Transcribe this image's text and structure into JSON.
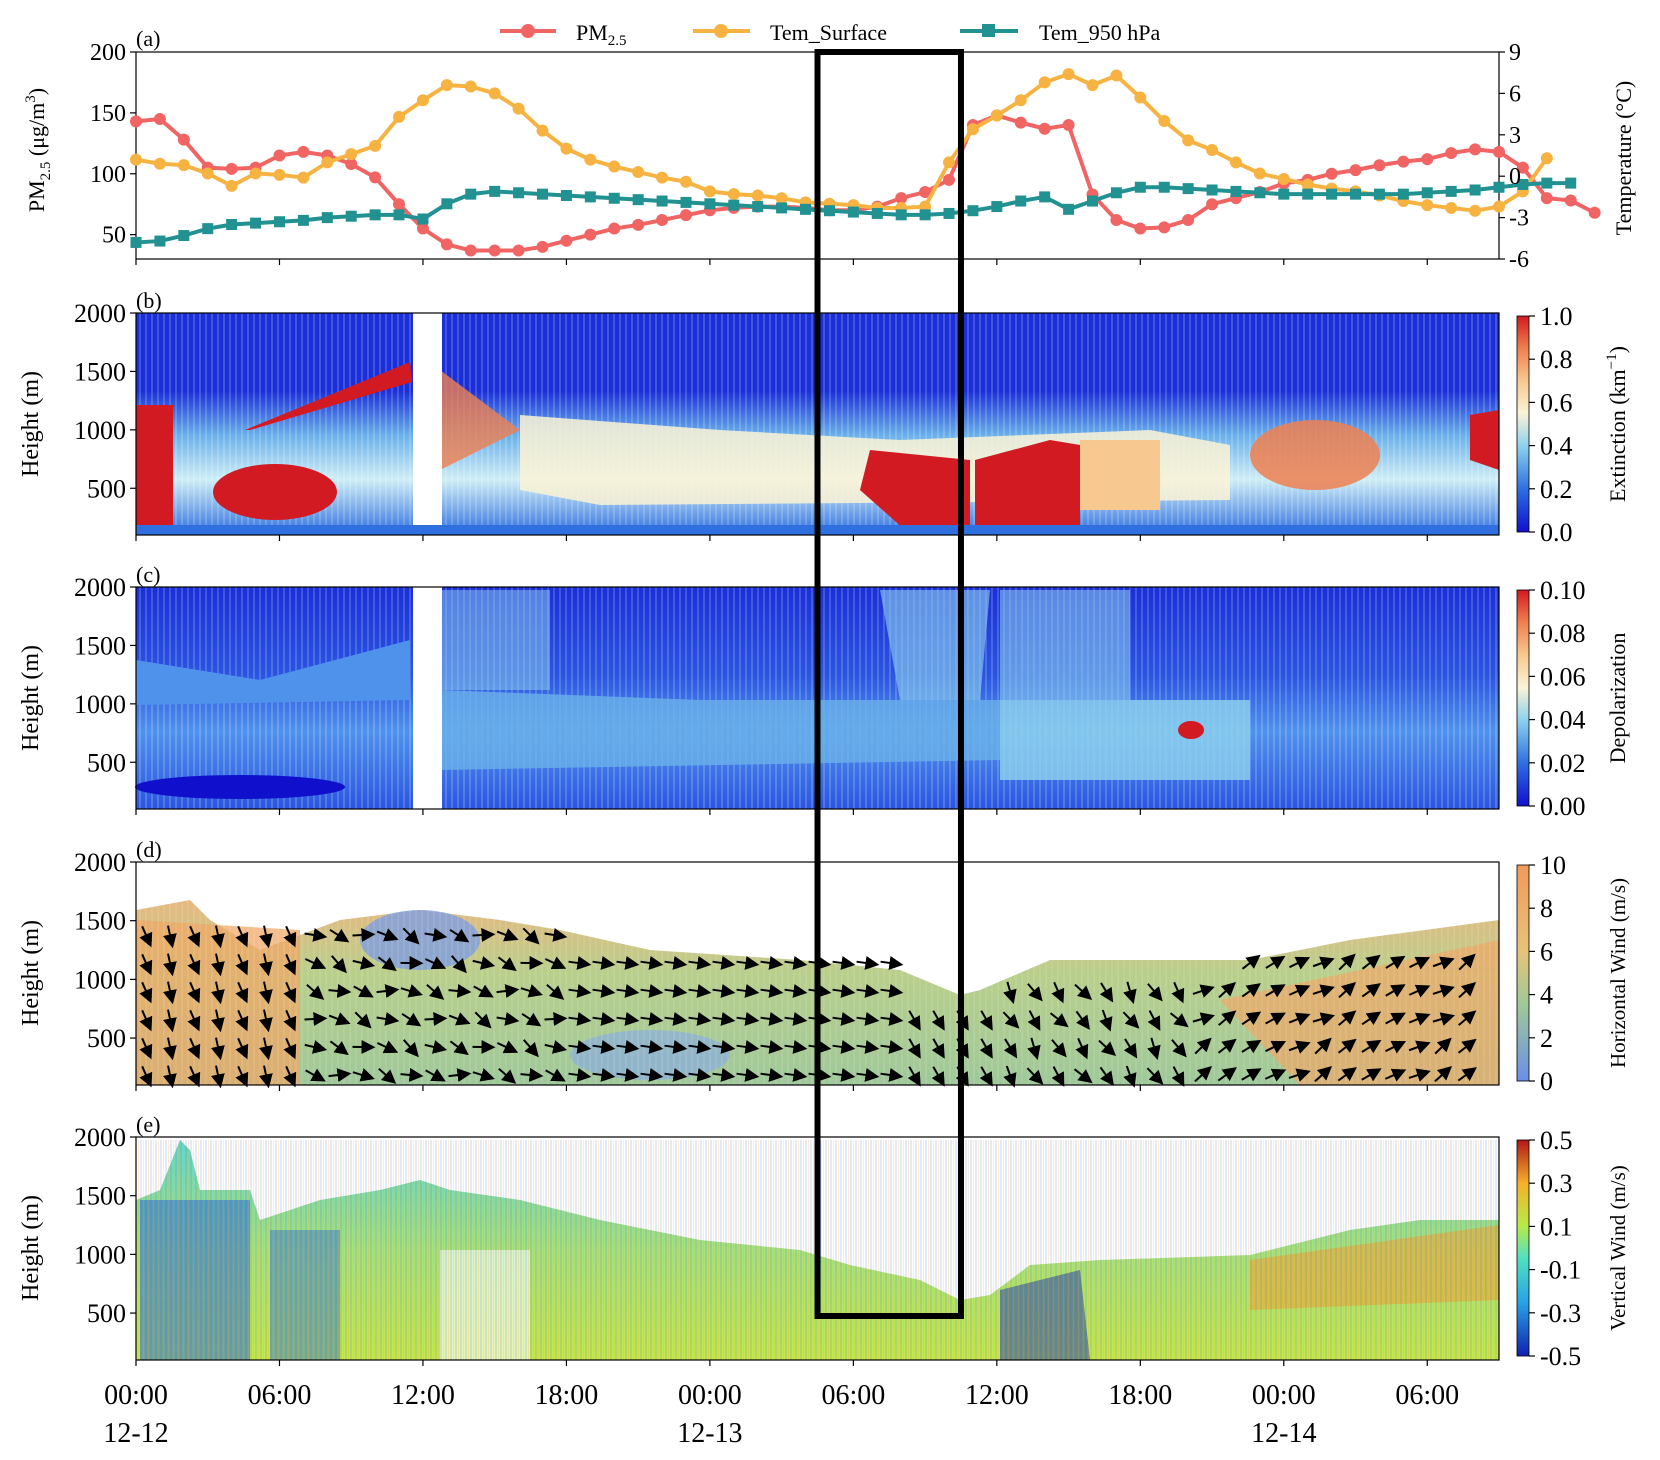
{
  "chart_data": [
    {
      "panel": "(a)",
      "type": "line",
      "ylabel": "PM2.5 (μg/m3)",
      "y2label": "Temperature (°C)",
      "yticks": [
        "50",
        "100",
        "150",
        "200"
      ],
      "y2ticks": [
        "-6",
        "-3",
        "0",
        "3",
        "6",
        "9"
      ],
      "ylim": [
        30,
        200
      ],
      "y2lim": [
        -6,
        9
      ],
      "x_hours_step": 1,
      "legend": [
        "PM2.5",
        "Tem_Surface",
        "Tem_950 hPa"
      ],
      "series": [
        {
          "name": "PM2.5",
          "color": "#f06464",
          "axis": "left",
          "values": [
            143,
            145,
            128,
            105,
            104,
            105,
            115,
            118,
            115,
            108,
            97,
            75,
            55,
            42,
            37,
            37,
            37,
            40,
            45,
            50,
            55,
            58,
            62,
            66,
            70,
            72,
            73,
            73,
            72,
            70,
            70,
            73,
            80,
            85,
            95,
            140,
            148,
            142,
            137,
            140,
            83,
            62,
            55,
            56,
            62,
            75,
            80,
            85,
            92,
            95,
            100,
            103,
            107,
            110,
            112,
            117,
            120,
            118,
            105,
            80,
            78,
            68
          ]
        },
        {
          "name": "Tem_Surface",
          "color": "#f7b342",
          "axis": "right",
          "values": [
            1.2,
            0.9,
            0.8,
            0.2,
            -0.7,
            0.2,
            0.1,
            -0.1,
            1.0,
            1.6,
            2.2,
            4.3,
            5.5,
            6.6,
            6.5,
            6.0,
            4.9,
            3.3,
            2.0,
            1.2,
            0.7,
            0.3,
            -0.1,
            -0.4,
            -1.1,
            -1.3,
            -1.4,
            -1.6,
            -1.9,
            -2.0,
            -2.1,
            -2.3,
            -2.3,
            -2.2,
            1.0,
            3.4,
            4.4,
            5.5,
            6.8,
            7.4,
            6.6,
            7.3,
            5.7,
            4.0,
            2.6,
            1.9,
            1.0,
            0.2,
            -0.2,
            -0.6,
            -0.9,
            -1.1,
            -1.4,
            -1.8,
            -2.1,
            -2.3,
            -2.5,
            -2.2,
            -1.1,
            1.3
          ]
        },
        {
          "name": "Tem_950 hPa",
          "color": "#229191",
          "axis": "right",
          "values": [
            -4.8,
            -4.7,
            -4.3,
            -3.8,
            -3.5,
            -3.4,
            -3.3,
            -3.2,
            -3.0,
            -2.9,
            -2.8,
            -2.8,
            -3.1,
            -2.0,
            -1.3,
            -1.1,
            -1.2,
            -1.3,
            -1.4,
            -1.5,
            -1.6,
            -1.7,
            -1.8,
            -1.9,
            -2.0,
            -2.1,
            -2.2,
            -2.3,
            -2.4,
            -2.5,
            -2.6,
            -2.7,
            -2.8,
            -2.8,
            -2.7,
            -2.5,
            -2.2,
            -1.8,
            -1.5,
            -2.4,
            -1.8,
            -1.2,
            -0.8,
            -0.8,
            -0.9,
            -1.0,
            -1.1,
            -1.2,
            -1.3,
            -1.3,
            -1.3,
            -1.3,
            -1.3,
            -1.3,
            -1.2,
            -1.1,
            -1.0,
            -0.8,
            -0.6,
            -0.5,
            -0.5
          ]
        }
      ]
    },
    {
      "panel": "(b)",
      "type": "heatmap",
      "ylabel": "Height (m)",
      "yticks": [
        "500",
        "1000",
        "1500",
        "2000"
      ],
      "colorbar_label": "Extinction (km−1)",
      "colorbar_ticks": [
        "0.0",
        "0.2",
        "0.4",
        "0.6",
        "0.8",
        "1.0"
      ]
    },
    {
      "panel": "(c)",
      "type": "heatmap",
      "ylabel": "Height (m)",
      "yticks": [
        "500",
        "1000",
        "1500",
        "2000"
      ],
      "colorbar_label": "Depolarization",
      "colorbar_ticks": [
        "0.00",
        "0.02",
        "0.04",
        "0.06",
        "0.08",
        "0.10"
      ]
    },
    {
      "panel": "(d)",
      "type": "heatmap",
      "ylabel": "Height (m)",
      "yticks": [
        "500",
        "1000",
        "1500",
        "2000"
      ],
      "colorbar_label": "Horizontal Wind (m/s)",
      "colorbar_ticks": [
        "0",
        "2",
        "4",
        "6",
        "8",
        "10"
      ]
    },
    {
      "panel": "(e)",
      "type": "heatmap",
      "ylabel": "Height (m)",
      "yticks": [
        "500",
        "1000",
        "1500",
        "2000"
      ],
      "colorbar_label": "Vertical Wind (m/s)",
      "colorbar_ticks": [
        "-0.5",
        "-0.3",
        "-0.1",
        "0.1",
        "0.3",
        "0.5"
      ]
    }
  ],
  "x_axis": {
    "range_hours": [
      0,
      57
    ],
    "ticks": [
      {
        "hour": 0,
        "time": "00:00",
        "date": "12-12"
      },
      {
        "hour": 6,
        "time": "06:00",
        "date": ""
      },
      {
        "hour": 12,
        "time": "12:00",
        "date": ""
      },
      {
        "hour": 18,
        "time": "18:00",
        "date": ""
      },
      {
        "hour": 24,
        "time": "00:00",
        "date": "12-13"
      },
      {
        "hour": 30,
        "time": "06:00",
        "date": ""
      },
      {
        "hour": 36,
        "time": "12:00",
        "date": ""
      },
      {
        "hour": 42,
        "time": "18:00",
        "date": ""
      },
      {
        "hour": 48,
        "time": "00:00",
        "date": "12-14"
      },
      {
        "hour": 54,
        "time": "06:00",
        "date": ""
      }
    ]
  },
  "highlight_box_hours": [
    28.5,
    34.5
  ],
  "labels": {
    "panel_a": "(a)",
    "panel_b": "(b)",
    "panel_c": "(c)",
    "panel_d": "(d)",
    "panel_e": "(e)",
    "legend_pm": "PM",
    "legend_pm_sub": "2.5",
    "legend_surface": "Tem_Surface",
    "legend_950": "Tem_950 hPa",
    "ylabel_a_main": "PM",
    "ylabel_a_sub": "2.5",
    "ylabel_a_unit": " (μg/m",
    "ylabel_a_sup": "3",
    "ylabel_a_close": ")",
    "y2label_a": "Temperature (°C)",
    "ylabel_height": "Height (m)",
    "cb_b_main": "Extinction (km",
    "cb_b_sup": "−1",
    "cb_b_close": ")",
    "cb_c": "Depolarization",
    "cb_d": "Horizontal Wind (m/s)",
    "cb_e": "Vertical Wind (m/s)"
  }
}
